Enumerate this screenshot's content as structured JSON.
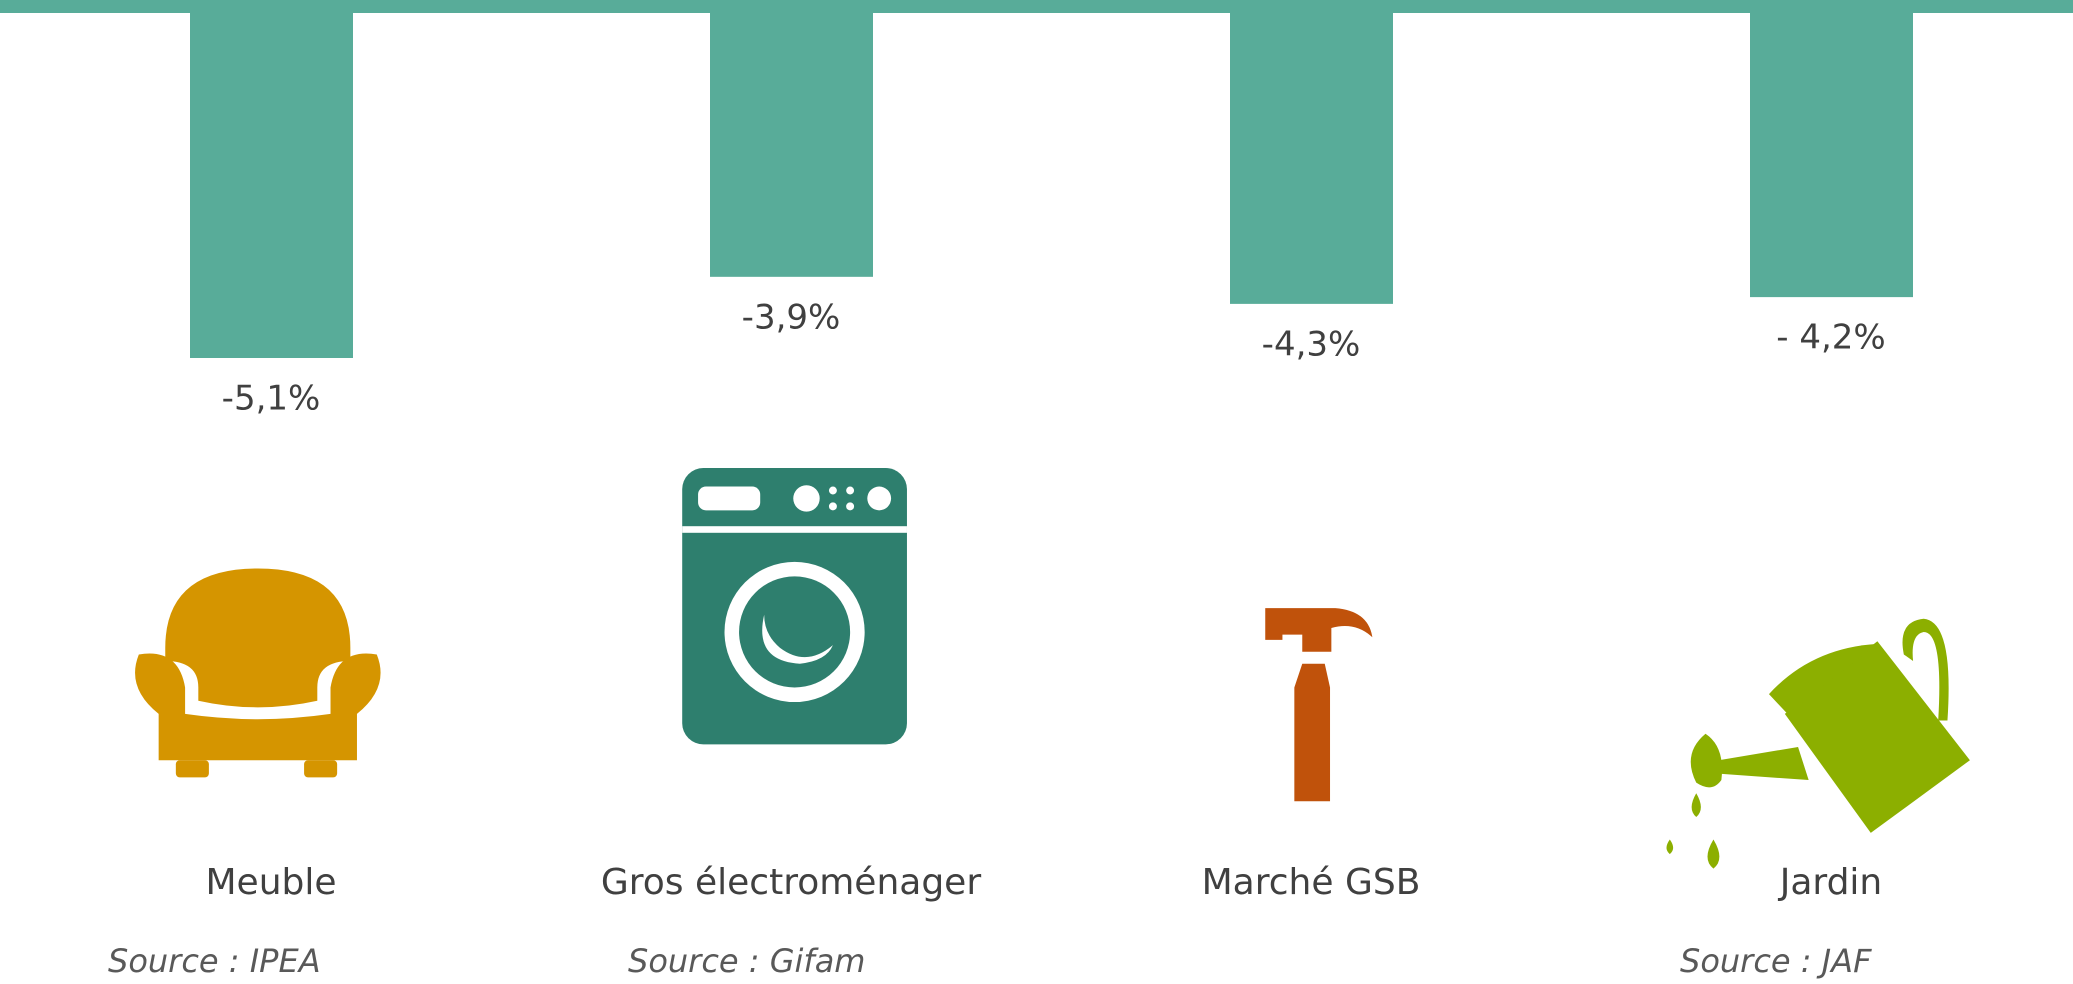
{
  "chart_data": {
    "type": "bar",
    "categories": [
      "Meuble",
      "Gros électroménager",
      "Marché GSB",
      "Jardin"
    ],
    "values": [
      -5.1,
      -3.9,
      -4.3,
      -4.2
    ],
    "value_labels": [
      "-5,1%",
      "-3,9%",
      "-4,3%",
      "- 4,2%"
    ],
    "sources": [
      "Source : IPEA",
      "Source : Gifam",
      null,
      "Source : JAF"
    ],
    "color": "#58ac99"
  }
}
